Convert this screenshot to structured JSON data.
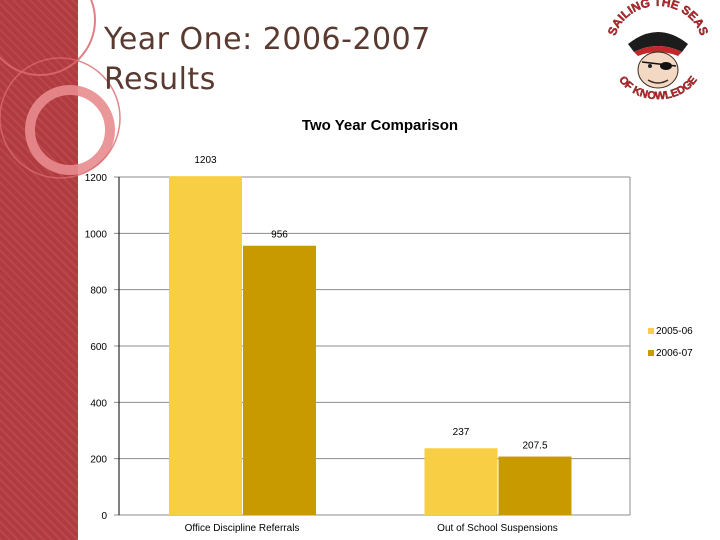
{
  "slide": {
    "title_line1": "Year One: 2006-2007",
    "title_line2": "Results",
    "logo_text_top": "SAILING THE SEAS",
    "logo_text_bottom": "OF KNOWLEDGE"
  },
  "colors": {
    "band": "#b23b3f",
    "series1": "#f8ce45",
    "series2": "#c89a00",
    "logo_red": "#c0282c"
  },
  "chart_data": {
    "type": "bar",
    "title": "Two Year Comparison",
    "categories": [
      "Office Discipline Referrals",
      "Out of School Suspensions"
    ],
    "series": [
      {
        "name": "2005-06",
        "values": [
          1203,
          237
        ]
      },
      {
        "name": "2006-07",
        "values": [
          956,
          207.5
        ]
      }
    ],
    "data_labels": [
      [
        "1203",
        "956"
      ],
      [
        "237",
        "207.5"
      ]
    ],
    "yticks": [
      "0",
      "200",
      "400",
      "600",
      "800",
      "1000",
      "1200"
    ],
    "ylim": [
      0,
      1200
    ],
    "grid": true,
    "legend": "right"
  }
}
